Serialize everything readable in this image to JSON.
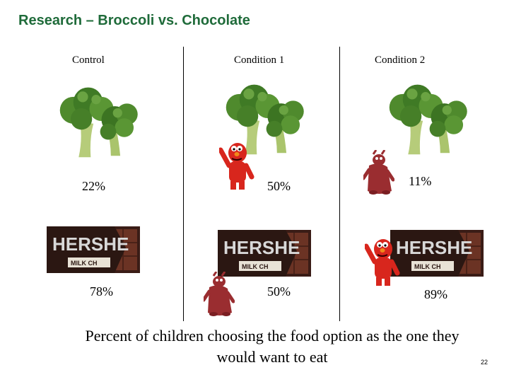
{
  "slide": {
    "title": "Research – Broccoli vs. Chocolate",
    "footer": "Percent of children choosing the food option as the one they would want to eat",
    "page_number": "22"
  },
  "conditions": [
    {
      "label": "Control",
      "broccoli_pct": "22%",
      "chocolate_pct": "78%",
      "broccoli_character": "",
      "chocolate_character": ""
    },
    {
      "label": "Condition 1",
      "broccoli_pct": "50%",
      "chocolate_pct": "50%",
      "broccoli_character": "elmo-icon",
      "chocolate_character": "unknown-muppet-icon"
    },
    {
      "label": "Condition 2",
      "broccoli_pct": "11%",
      "chocolate_pct": "89%",
      "broccoli_character": "unknown-muppet-icon",
      "chocolate_character": "elmo-icon"
    }
  ],
  "chocolate_wrapper": {
    "brand": "HERSHE",
    "sub": "MILK CH"
  },
  "colors": {
    "title": "#1f6b3a",
    "broccoli": "#3f7a25",
    "chocolate": "#5a2a1e",
    "elmo": "#d8261d",
    "muppet": "#9a2d30"
  }
}
